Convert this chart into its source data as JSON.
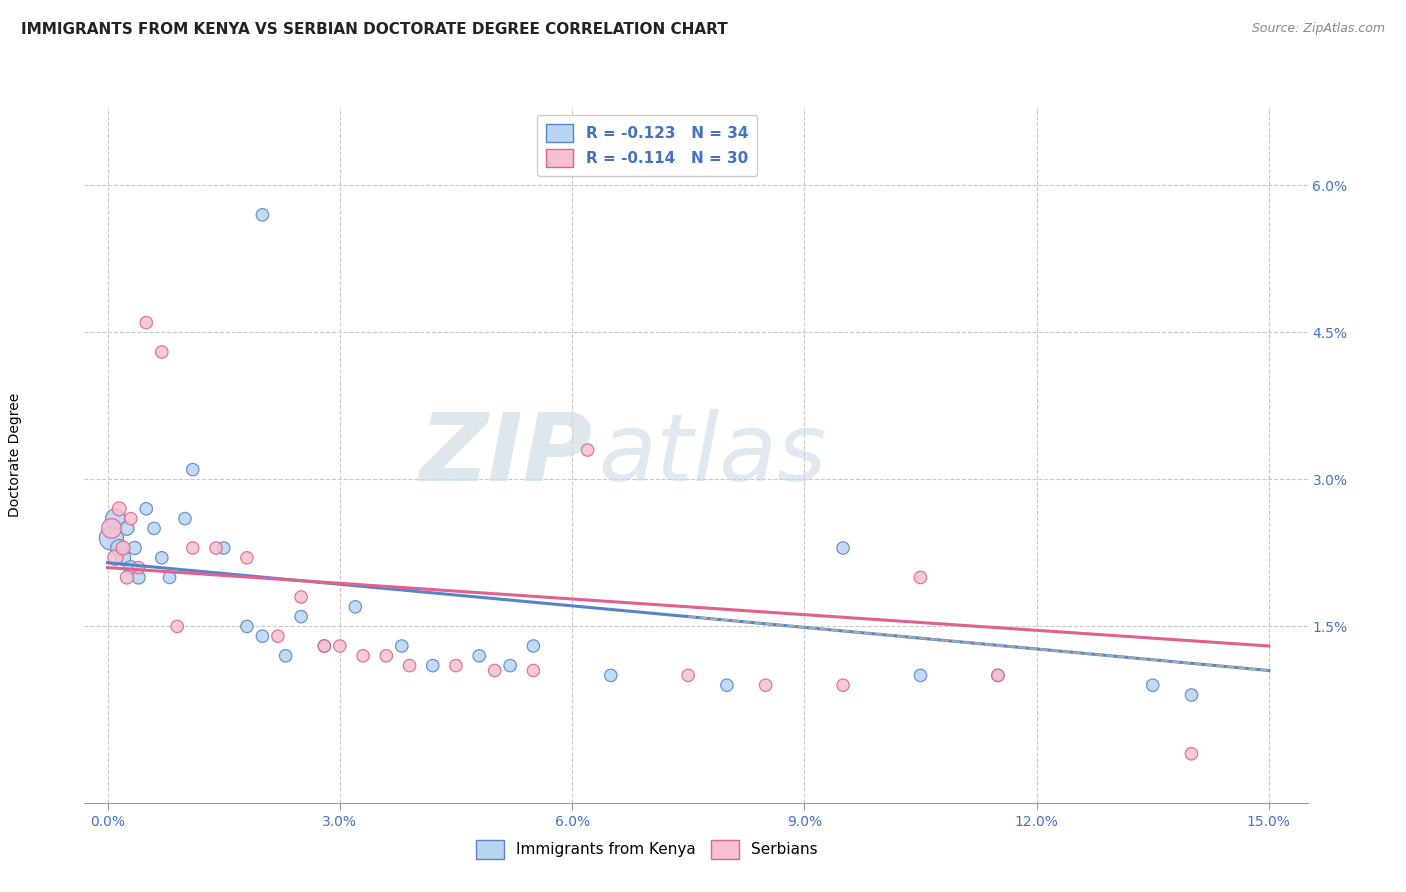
{
  "title": "IMMIGRANTS FROM KENYA VS SERBIAN DOCTORATE DEGREE CORRELATION CHART",
  "source": "Source: ZipAtlas.com",
  "xlabel_vals": [
    0.0,
    3.0,
    6.0,
    9.0,
    12.0,
    15.0
  ],
  "ylabel": "Doctorate Degree",
  "ylabel_vals": [
    1.5,
    3.0,
    4.5,
    6.0
  ],
  "xlim": [
    -0.3,
    15.5
  ],
  "ylim": [
    -0.3,
    6.8
  ],
  "watermark_zip": "ZIP",
  "watermark_atlas": "atlas",
  "legend_label_kenya": "R = -0.123   N = 34",
  "legend_label_serbian": "R = -0.114   N = 30",
  "legend_label_kenya_bottom": "Immigrants from Kenya",
  "legend_label_serbian_bottom": "Serbians",
  "kenya_scatter_x": [
    0.05,
    0.1,
    0.15,
    0.2,
    0.25,
    0.3,
    0.35,
    0.4,
    0.5,
    0.6,
    0.7,
    0.8,
    1.0,
    1.1,
    1.5,
    1.8,
    2.0,
    2.3,
    2.5,
    2.8,
    3.2,
    3.8,
    4.2,
    4.8,
    5.2,
    5.5,
    6.5,
    8.0,
    9.5,
    10.5,
    11.5,
    13.5,
    14.0,
    2.0
  ],
  "kenya_scatter_y": [
    2.4,
    2.6,
    2.3,
    2.2,
    2.5,
    2.1,
    2.3,
    2.0,
    2.7,
    2.5,
    2.2,
    2.0,
    2.6,
    3.1,
    2.3,
    1.5,
    1.4,
    1.2,
    1.6,
    1.3,
    1.7,
    1.3,
    1.1,
    1.2,
    1.1,
    1.3,
    1.0,
    0.9,
    2.3,
    1.0,
    1.0,
    0.9,
    0.8,
    5.7
  ],
  "kenya_scatter_size": [
    300,
    200,
    150,
    120,
    100,
    100,
    90,
    90,
    80,
    80,
    80,
    80,
    80,
    80,
    80,
    80,
    80,
    80,
    80,
    80,
    80,
    80,
    80,
    80,
    80,
    80,
    80,
    80,
    80,
    80,
    80,
    80,
    80,
    80
  ],
  "serbian_scatter_x": [
    0.05,
    0.1,
    0.15,
    0.2,
    0.25,
    0.3,
    0.4,
    0.5,
    0.7,
    0.9,
    1.1,
    1.4,
    1.8,
    2.2,
    2.5,
    2.8,
    3.0,
    3.3,
    3.6,
    3.9,
    4.5,
    5.0,
    5.5,
    6.2,
    7.5,
    8.5,
    9.5,
    10.5,
    11.5,
    14.0
  ],
  "serbian_scatter_y": [
    2.5,
    2.2,
    2.7,
    2.3,
    2.0,
    2.6,
    2.1,
    4.6,
    4.3,
    1.5,
    2.3,
    2.3,
    2.2,
    1.4,
    1.8,
    1.3,
    1.3,
    1.2,
    1.2,
    1.1,
    1.1,
    1.05,
    1.05,
    3.3,
    1.0,
    0.9,
    0.9,
    2.0,
    1.0,
    0.2
  ],
  "serbian_scatter_size": [
    200,
    120,
    100,
    100,
    90,
    80,
    80,
    80,
    80,
    80,
    80,
    80,
    80,
    80,
    80,
    80,
    80,
    80,
    80,
    80,
    80,
    80,
    80,
    80,
    80,
    80,
    80,
    80,
    80,
    80
  ],
  "kenya_color": "#b8d4f0",
  "serbian_color": "#f5c0d0",
  "kenya_edge_color": "#5585c8",
  "serbian_edge_color": "#e06090",
  "kenya_trendline_x": [
    0.0,
    15.0
  ],
  "kenya_trendline_y": [
    2.15,
    1.05
  ],
  "serbian_trendline_x": [
    0.0,
    15.0
  ],
  "serbian_trendline_y": [
    2.1,
    1.3
  ],
  "kenya_dash_start_x": 7.5,
  "kenya_dash_start_y": 1.6,
  "kenya_dash_end_x": 15.0,
  "kenya_dash_end_y": 1.05,
  "background_color": "#ffffff",
  "grid_color": "#c8c8c8",
  "title_fontsize": 11,
  "source_fontsize": 9,
  "axis_label_fontsize": 10,
  "tick_fontsize": 10
}
